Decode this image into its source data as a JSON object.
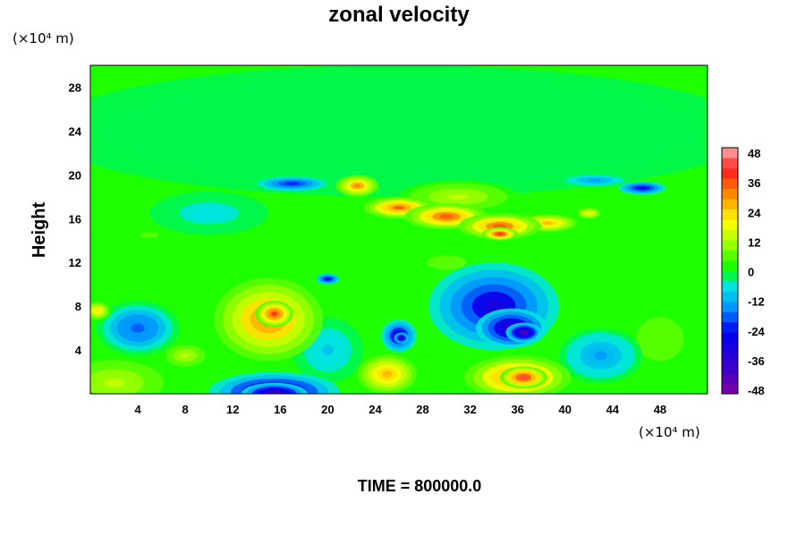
{
  "chart_data": {
    "type": "heatmap",
    "title": "zonal velocity",
    "ylabel": "Height",
    "y_units_label": "(×10⁴ m)",
    "x_units_label": "(×10⁴ m)",
    "xlim": [
      0,
      52
    ],
    "ylim": [
      0,
      30
    ],
    "x_ticks": [
      4,
      8,
      12,
      16,
      20,
      24,
      28,
      32,
      36,
      40,
      44,
      48
    ],
    "y_ticks": [
      4,
      8,
      12,
      16,
      20,
      24,
      28
    ],
    "colorbar": {
      "min": -48,
      "max": 48,
      "step": 4,
      "tick_labels": [
        48,
        36,
        24,
        12,
        0,
        -12,
        -24,
        -36,
        -48
      ]
    },
    "footer": "TIME = 800000.0",
    "background_value": 0,
    "features": [
      {
        "x": 15.0,
        "y": 6.8,
        "rx": 4.6,
        "ry": 3.8,
        "value": 36
      },
      {
        "x": 15.5,
        "y": 7.3,
        "rx": 1.6,
        "ry": 1.2,
        "value": 44
      },
      {
        "x": 15.5,
        "y": 0.2,
        "rx": 5.5,
        "ry": 1.8,
        "value": -38
      },
      {
        "x": 15.5,
        "y": 0.0,
        "rx": 2.8,
        "ry": 1.0,
        "value": -48
      },
      {
        "x": 34.0,
        "y": 8.0,
        "rx": 5.5,
        "ry": 4.0,
        "value": -34
      },
      {
        "x": 35.5,
        "y": 6.0,
        "rx": 3.0,
        "ry": 1.8,
        "value": -42
      },
      {
        "x": 36.5,
        "y": 5.6,
        "rx": 1.5,
        "ry": 0.9,
        "value": -48
      },
      {
        "x": 36.0,
        "y": 1.5,
        "rx": 4.5,
        "ry": 2.0,
        "value": 38
      },
      {
        "x": 36.5,
        "y": 1.5,
        "rx": 2.0,
        "ry": 1.0,
        "value": 48
      },
      {
        "x": 26.0,
        "y": 5.3,
        "rx": 1.5,
        "ry": 1.5,
        "value": -36
      },
      {
        "x": 26.2,
        "y": 5.1,
        "rx": 0.6,
        "ry": 0.5,
        "value": -46
      },
      {
        "x": 25.0,
        "y": 1.8,
        "rx": 2.5,
        "ry": 1.8,
        "value": 28
      },
      {
        "x": 4.0,
        "y": 6.0,
        "rx": 3.5,
        "ry": 2.5,
        "value": -22
      },
      {
        "x": 2.0,
        "y": 1.0,
        "rx": 5.0,
        "ry": 2.5,
        "value": 16
      },
      {
        "x": 0.6,
        "y": 7.6,
        "rx": 1.2,
        "ry": 1.0,
        "value": 26
      },
      {
        "x": 8.0,
        "y": 3.5,
        "rx": 2.0,
        "ry": 1.2,
        "value": 14
      },
      {
        "x": 48.0,
        "y": 5.0,
        "rx": 4.0,
        "ry": 4.0,
        "value": 8
      },
      {
        "x": 43.0,
        "y": 3.5,
        "rx": 3.5,
        "ry": 2.5,
        "value": -14
      },
      {
        "x": 20.0,
        "y": 4.0,
        "rx": 3.0,
        "ry": 3.0,
        "value": -10
      },
      {
        "x": 30.0,
        "y": 12.0,
        "rx": 5.0,
        "ry": 2.0,
        "value": 6
      },
      {
        "x": 22.5,
        "y": 19.0,
        "rx": 1.8,
        "ry": 1.0,
        "value": 34
      },
      {
        "x": 26.0,
        "y": 17.0,
        "rx": 3.0,
        "ry": 1.0,
        "value": 38
      },
      {
        "x": 30.0,
        "y": 16.2,
        "rx": 3.5,
        "ry": 1.2,
        "value": 40
      },
      {
        "x": 34.5,
        "y": 15.3,
        "rx": 3.5,
        "ry": 1.2,
        "value": 40
      },
      {
        "x": 34.5,
        "y": 14.6,
        "rx": 1.5,
        "ry": 0.6,
        "value": 46
      },
      {
        "x": 38.5,
        "y": 15.6,
        "rx": 2.5,
        "ry": 0.8,
        "value": 30
      },
      {
        "x": 31.0,
        "y": 18.0,
        "rx": 5.0,
        "ry": 1.5,
        "value": 14
      },
      {
        "x": 17.0,
        "y": 19.2,
        "rx": 3.5,
        "ry": 0.8,
        "value": -24
      },
      {
        "x": 46.5,
        "y": 18.8,
        "rx": 2.0,
        "ry": 0.6,
        "value": -30
      },
      {
        "x": 42.5,
        "y": 19.5,
        "rx": 3.0,
        "ry": 0.6,
        "value": -16
      },
      {
        "x": 10.0,
        "y": 16.5,
        "rx": 5.0,
        "ry": 2.0,
        "value": -8
      },
      {
        "x": 5.0,
        "y": 14.5,
        "rx": 5.0,
        "ry": 1.5,
        "value": 5
      },
      {
        "x": 45.0,
        "y": 15.0,
        "rx": 3.0,
        "ry": 1.5,
        "value": 4
      },
      {
        "x": 42.0,
        "y": 16.5,
        "rx": 1.2,
        "ry": 0.6,
        "value": 22
      },
      {
        "x": 20.0,
        "y": 10.5,
        "rx": 1.0,
        "ry": 0.5,
        "value": -28
      },
      {
        "x": 26.0,
        "y": 24.0,
        "rx": 30.0,
        "ry": 6.0,
        "value": -1
      }
    ]
  }
}
